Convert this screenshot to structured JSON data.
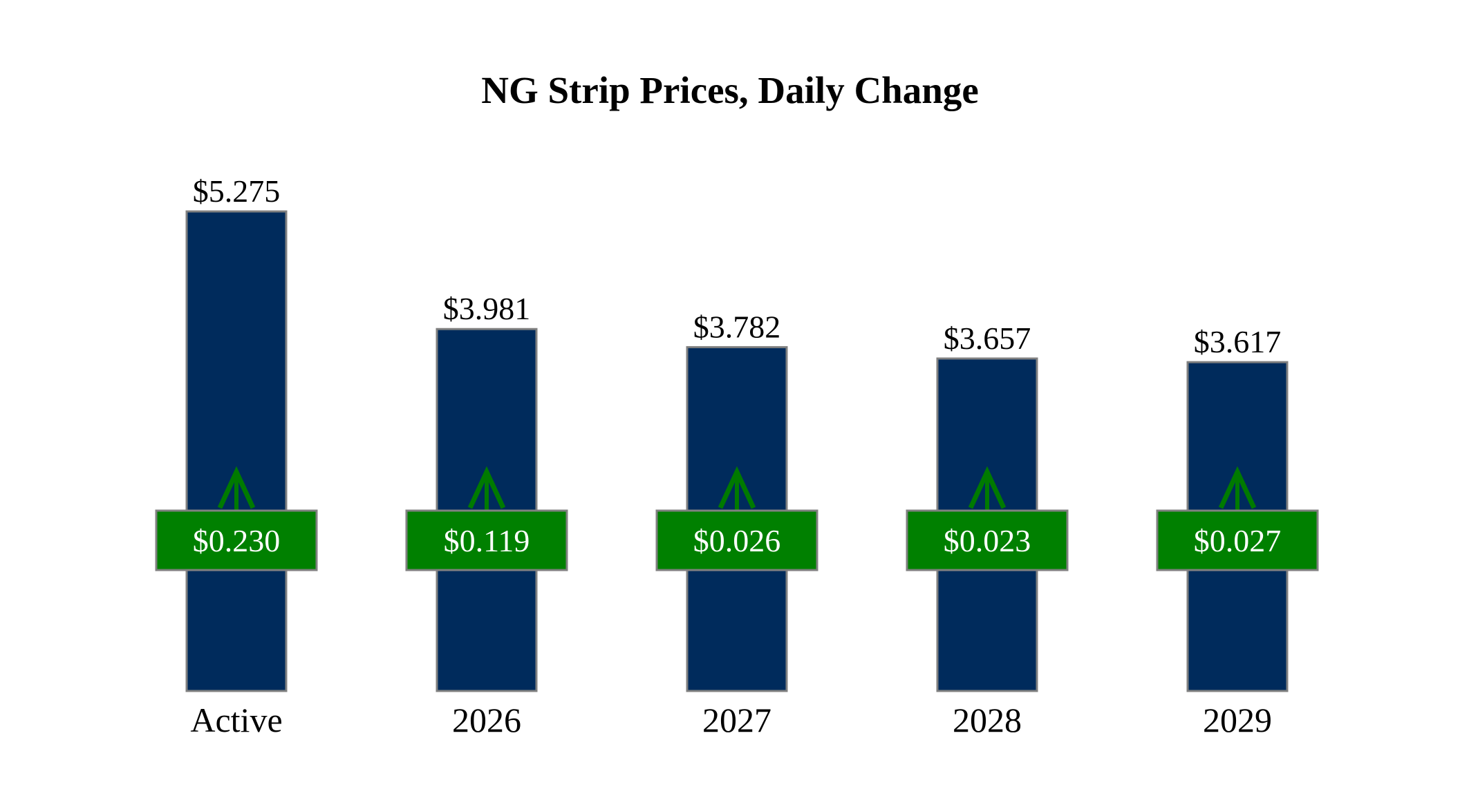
{
  "chart_data": {
    "type": "bar",
    "title": "NG Strip Prices, Daily Change",
    "categories": [
      "Active",
      "2026",
      "2027",
      "2028",
      "2029"
    ],
    "values": [
      5.275,
      3.981,
      3.782,
      3.657,
      3.617
    ],
    "value_labels": [
      "$5.275",
      "$3.981",
      "$3.782",
      "$3.657",
      "$3.617"
    ],
    "changes": [
      0.23,
      0.119,
      0.026,
      0.023,
      0.027
    ],
    "change_labels": [
      "$0.230",
      "$0.119",
      "$0.026",
      "$0.023",
      "$0.027"
    ],
    "change_direction": [
      "up",
      "up",
      "up",
      "up",
      "up"
    ],
    "ylim": [
      0,
      5.275
    ],
    "grid": false,
    "legend": "none",
    "xlabel": "",
    "ylabel": "",
    "colors": {
      "bar": "#002b5c",
      "bar_outline": "#808080",
      "change_box": "#008000",
      "arrow": "#007a00",
      "change_text": "#ffffff"
    }
  }
}
